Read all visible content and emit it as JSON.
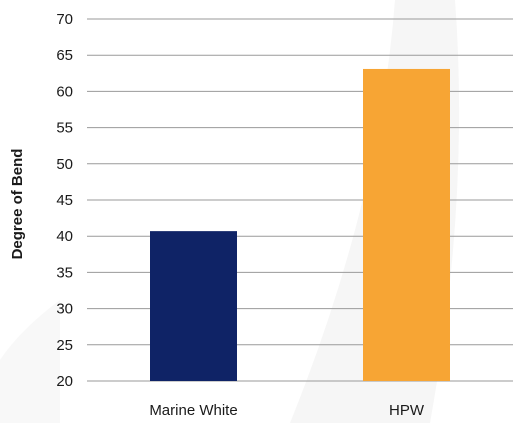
{
  "chart_data": {
    "type": "bar",
    "title": "",
    "xlabel": "",
    "ylabel": "Degree of Bend",
    "categories": [
      "Marine White",
      "HPW"
    ],
    "values": [
      40.7,
      63.1
    ],
    "bar_colors": [
      "#0f2366",
      "#f7a534"
    ],
    "ylim": [
      20,
      70
    ],
    "yticks": [
      20,
      25,
      30,
      35,
      40,
      45,
      50,
      55,
      60,
      65,
      70
    ],
    "grid": "horizontal",
    "legend": "none",
    "colors": {
      "grid": "#9a9a9a",
      "text": "#1a1a1a",
      "background_arc": "#f4f4f4"
    }
  }
}
